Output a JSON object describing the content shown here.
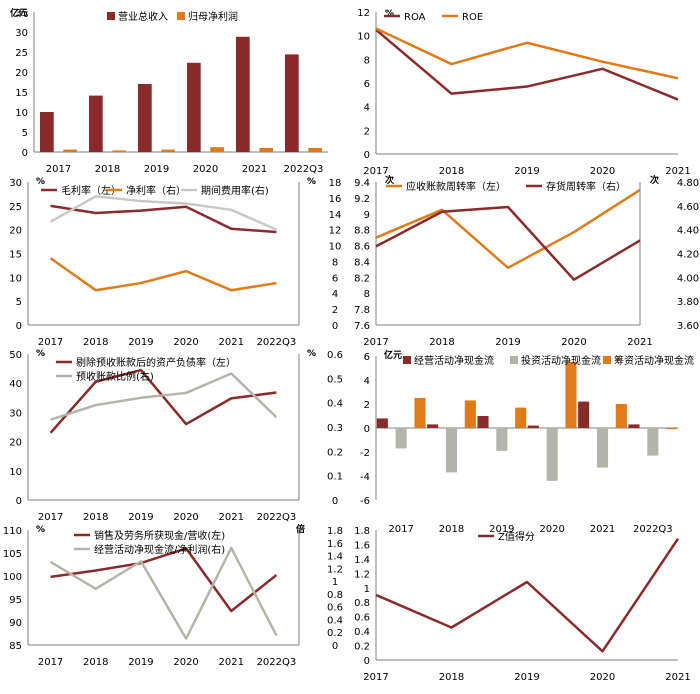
{
  "colors": {
    "red": "#8B2A2A",
    "orange": "#E07B1A",
    "gray": "#B4B4A8",
    "silver": "#C8C8C8",
    "axis": "#7F7F7F"
  },
  "chart_data": [
    {
      "type": "bar",
      "unit_left": "亿元",
      "categories": [
        "2017",
        "2018",
        "2019",
        "2020",
        "2021",
        "2022Q3"
      ],
      "ylim": [
        0,
        35
      ],
      "yticks": [
        "0",
        "5",
        "10",
        "15",
        "20",
        "25",
        "30",
        "35"
      ],
      "series": [
        {
          "name": "营业总收入",
          "color": "#8B2A2A",
          "values": [
            10,
            14.1,
            17,
            22.3,
            28.8,
            24.4
          ]
        },
        {
          "name": "归母净利润",
          "color": "#E07B1A",
          "values": [
            0.6,
            0.4,
            0.6,
            1.2,
            1.0,
            1.0
          ]
        }
      ]
    },
    {
      "type": "line",
      "unit_left": "%",
      "categories": [
        "2017",
        "2018",
        "2019",
        "2020",
        "2021"
      ],
      "ylim": [
        0,
        12
      ],
      "yticks": [
        "0",
        "2",
        "4",
        "6",
        "8",
        "10",
        "12"
      ],
      "series": [
        {
          "name": "ROA",
          "color": "#8B2A2A",
          "values": [
            10.5,
            5.1,
            5.7,
            7.2,
            4.6
          ]
        },
        {
          "name": "ROE",
          "color": "#E07B1A",
          "values": [
            10.6,
            7.6,
            9.4,
            7.8,
            6.4
          ]
        }
      ]
    },
    {
      "type": "line",
      "unit_left": "%",
      "unit_right": "%",
      "categories": [
        "2017",
        "2018",
        "2019",
        "2020",
        "2021",
        "2022Q3"
      ],
      "ylim": [
        0,
        30
      ],
      "ylim_right": [
        0,
        18
      ],
      "yticks": [
        "0",
        "5",
        "10",
        "15",
        "20",
        "25",
        "30"
      ],
      "yticks_right": [
        "0",
        "2",
        "4",
        "6",
        "8",
        "10",
        "12",
        "14",
        "16",
        "18"
      ],
      "series": [
        {
          "name": "毛利率（左）",
          "color": "#8B2A2A",
          "axis": "left",
          "values": [
            25,
            23.5,
            24,
            24.8,
            20.2,
            19.5
          ]
        },
        {
          "name": "净利率（右）",
          "color": "#E07B1A",
          "axis": "left",
          "values": [
            14,
            7.3,
            8.8,
            11.3,
            7.3,
            8.8
          ]
        },
        {
          "name": "期间费用率(右)",
          "color": "#C8C8C8",
          "axis": "right",
          "values": [
            13,
            16.2,
            15.6,
            15.3,
            14.5,
            12
          ]
        }
      ]
    },
    {
      "type": "line",
      "unit_left": "次",
      "unit_right": "次",
      "categories": [
        "2017",
        "2018",
        "2019",
        "2020",
        "2021"
      ],
      "ylim": [
        7.6,
        9.4
      ],
      "ylim_right": [
        3.6,
        4.8
      ],
      "yticks": [
        "7.6",
        "7.8",
        "8",
        "8.2",
        "8.4",
        "8.6",
        "8.8",
        "9",
        "9.2",
        "9.4"
      ],
      "yticks_right": [
        "3.60",
        "3.80",
        "4.00",
        "4.20",
        "4.40",
        "4.60",
        "4.80"
      ],
      "series": [
        {
          "name": "应收账款周转率（左）",
          "color": "#E07B1A",
          "axis": "left",
          "values": [
            8.7,
            9.05,
            8.32,
            8.77,
            9.3
          ]
        },
        {
          "name": "存货周转率（右）",
          "color": "#8B2A2A",
          "axis": "right",
          "values": [
            4.26,
            4.55,
            4.59,
            3.98,
            4.31
          ]
        }
      ]
    },
    {
      "type": "line",
      "unit_left": "%",
      "unit_right": "%",
      "categories": [
        "2017",
        "2018",
        "2019",
        "2020",
        "2021",
        "2022Q3"
      ],
      "ylim": [
        0,
        50
      ],
      "ylim_right": [
        0,
        0.6
      ],
      "yticks": [
        "0",
        "10",
        "20",
        "30",
        "40",
        "50"
      ],
      "yticks_right": [
        "0",
        "0.1",
        "0.2",
        "0.3",
        "0.4",
        "0.5",
        "0.6"
      ],
      "series": [
        {
          "name": "剔除预收账款后的资产负债率（左）",
          "color": "#8B2A2A",
          "axis": "left",
          "values": [
            23,
            40.5,
            44.5,
            26,
            34.8,
            36.8
          ]
        },
        {
          "name": "预收账款比例(右)",
          "color": "#B4B4A8",
          "axis": "right",
          "values": [
            0.33,
            0.39,
            0.42,
            0.44,
            0.52,
            0.34
          ]
        }
      ]
    },
    {
      "type": "bar",
      "unit_left": "亿元",
      "categories": [
        "2017",
        "2018",
        "2019",
        "2020",
        "2021",
        "2022Q3"
      ],
      "ylim": [
        -6,
        6
      ],
      "yticks": [
        "-6",
        "-4",
        "-2",
        "0",
        "2",
        "4",
        "6"
      ],
      "series": [
        {
          "name": "经营活动净现金流",
          "color": "#8B2A2A",
          "values": [
            0.8,
            0.3,
            1.0,
            0.2,
            2.2,
            0.3
          ]
        },
        {
          "name": "投资活动净现金流",
          "color": "#B4B4A8",
          "values": [
            -1.7,
            -3.7,
            -1.9,
            -4.4,
            -3.3,
            -2.3
          ]
        },
        {
          "name": "筹资活动净现金流",
          "color": "#E07B1A",
          "values": [
            2.5,
            2.3,
            1.7,
            5.5,
            2.0,
            -0.1
          ]
        }
      ]
    },
    {
      "type": "line",
      "unit_left": "%",
      "unit_right": "倍",
      "categories": [
        "2017",
        "2018",
        "2019",
        "2020",
        "2021",
        "2022Q3"
      ],
      "ylim": [
        85,
        110
      ],
      "ylim_right": [
        0,
        1.8
      ],
      "yticks": [
        "85",
        "90",
        "95",
        "100",
        "105",
        "110"
      ],
      "yticks_right": [
        "0",
        "0.2",
        "0.4",
        "0.6",
        "0.8",
        "1",
        "1.2",
        "1.4",
        "1.6",
        "1.8"
      ],
      "series": [
        {
          "name": "销售及劳务所获现金/营收(左)",
          "color": "#8B2A2A",
          "axis": "left",
          "values": [
            99.8,
            101.2,
            102.8,
            106,
            92.4,
            100.2
          ]
        },
        {
          "name": "经营活动净现金流/净利润(右)",
          "color": "#B4B4A8",
          "axis": "right",
          "values": [
            1.3,
            0.88,
            1.31,
            0.1,
            1.52,
            0.15
          ]
        }
      ]
    },
    {
      "type": "line",
      "categories": [
        "2017",
        "2018",
        "2019",
        "2020",
        "2021"
      ],
      "ylim": [
        0,
        1.8
      ],
      "yticks": [
        "0",
        "0.2",
        "0.4",
        "0.6",
        "0.8",
        "1",
        "1.2",
        "1.4",
        "1.6",
        "1.8"
      ],
      "series": [
        {
          "name": "Z值得分",
          "color": "#8B2A2A",
          "values": [
            0.9,
            0.45,
            1.08,
            0.12,
            1.68
          ]
        }
      ]
    }
  ]
}
